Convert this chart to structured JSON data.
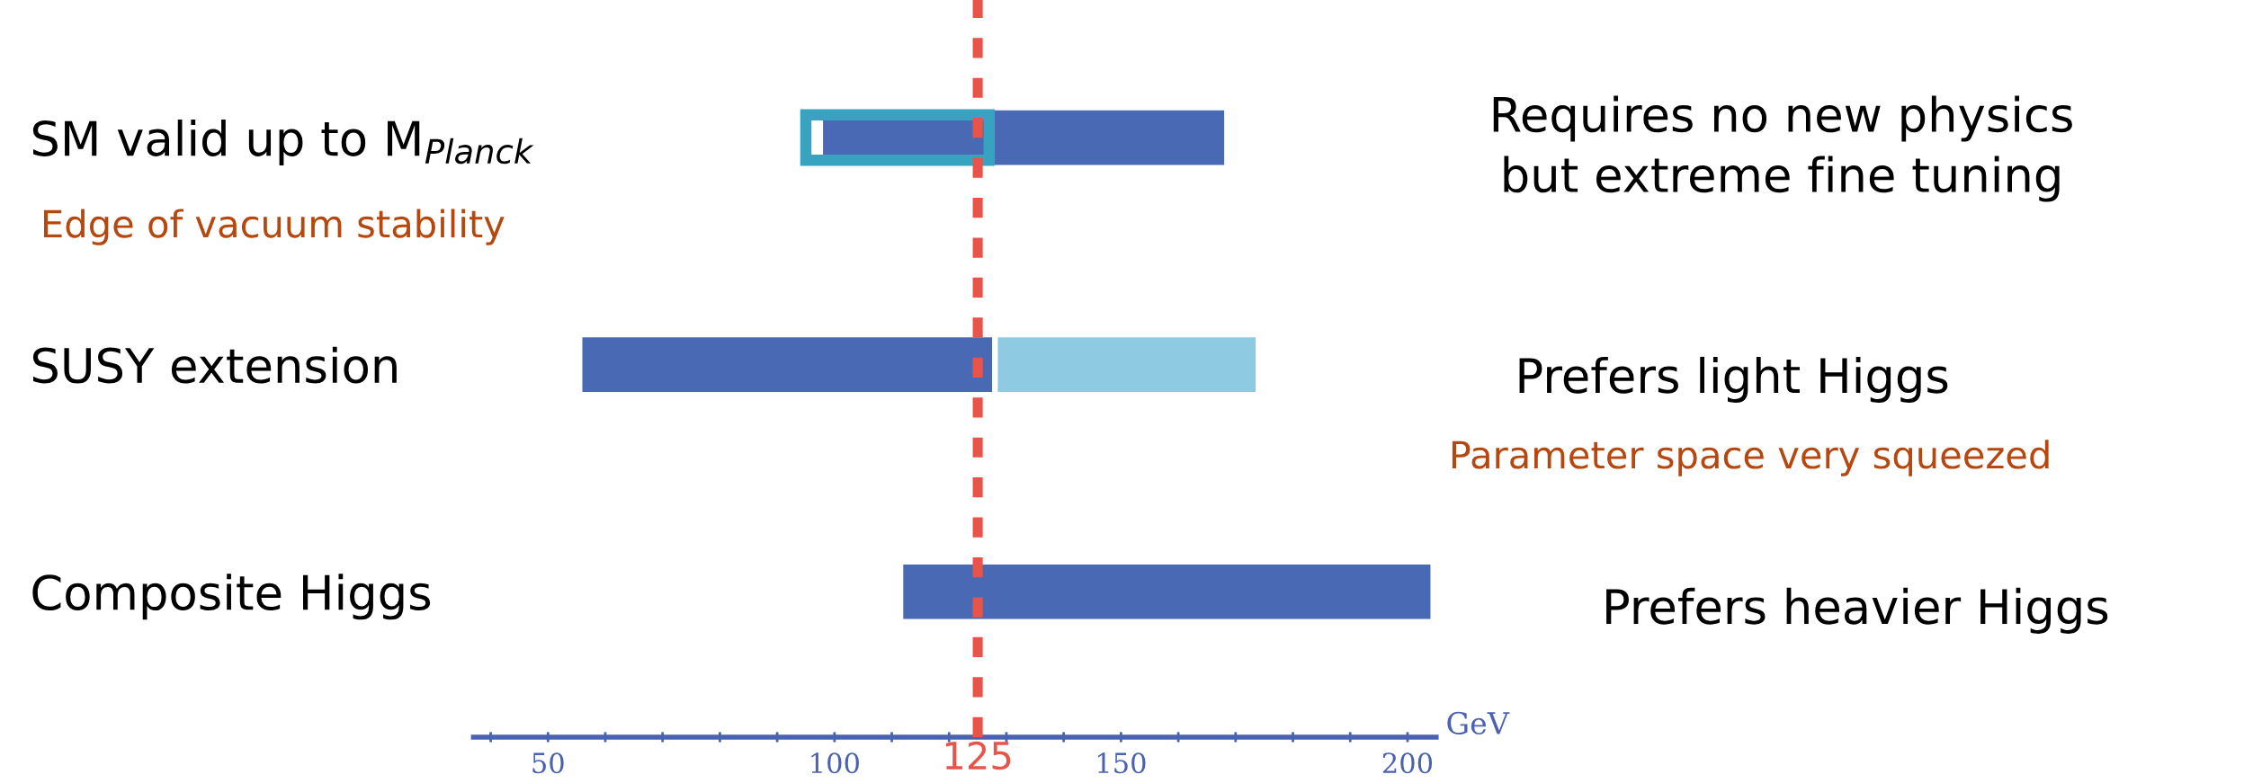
{
  "chart_data": {
    "type": "bar",
    "orientation": "horizontal",
    "categories": [
      "SM valid up to M$_{Planck}$",
      "SUSY extension",
      "Composite Higgs"
    ],
    "series": [
      {
        "color": "#4a69b4",
        "values": [
          70,
          71.5,
          92
        ],
        "base": [
          98,
          56,
          112
        ]
      },
      {
        "color": "#8ecbe2",
        "values": [
          null,
          45,
          null
        ],
        "base": [
          null,
          128.5,
          null
        ]
      },
      {
        "color": "#38a3c0",
        "values": [
          32,
          null,
          null
        ],
        "base": [
          95,
          null,
          null
        ],
        "line_style": "solid"
      }
    ],
    "xlabel": "GeV",
    "xlim": [
      37,
      205
    ],
    "xticks": [
      {
        "value": 40,
        "label": null
      },
      50,
      {
        "value": 60,
        "label": null
      },
      {
        "value": 70,
        "label": null
      },
      {
        "value": 80,
        "label": null
      },
      {
        "value": 90,
        "label": null
      },
      100,
      {
        "value": 110,
        "label": null
      },
      {
        "value": 120,
        "label": null
      },
      {
        "value": 130,
        "label": null
      },
      {
        "value": 140,
        "label": null
      },
      150,
      {
        "value": 160,
        "label": null
      },
      {
        "value": 170,
        "label": null
      },
      {
        "value": 180,
        "label": null
      },
      {
        "value": 190,
        "label": null
      },
      200
    ],
    "ref_lines": [
      {
        "axis": "x",
        "value": 125,
        "label": "125",
        "color": "#e8534a",
        "line_style": "dashed"
      }
    ],
    "annotations": [
      "Requires no new physics\nbut extreme fine tuning",
      "Edge of vacuum stability",
      "Prefers light Higgs",
      "Parameter space very squeezed",
      "Prefers heavier Higgs"
    ],
    "grid": false,
    "legend": false
  }
}
